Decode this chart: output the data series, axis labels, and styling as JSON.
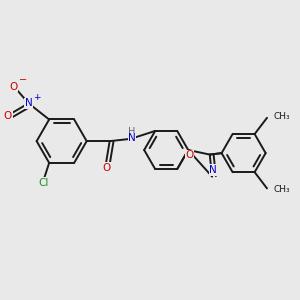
{
  "background_color": "#e9e9e9",
  "bond_color": "#1a1a1a",
  "N_color": "#0000cc",
  "O_color": "#cc0000",
  "Cl_color": "#228B22",
  "H_color": "#666666",
  "figsize": [
    3.0,
    3.0
  ],
  "dpi": 100,
  "xlim": [
    0,
    10
  ],
  "ylim": [
    0,
    10
  ]
}
